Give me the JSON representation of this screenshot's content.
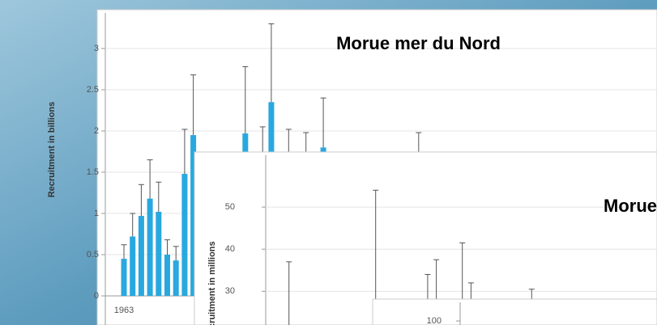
{
  "chart_data": [
    {
      "type": "bar",
      "title": "Morue mer du Nord",
      "y_label": "Recruitment in billions",
      "color": "#29a8df",
      "categories": [
        "1963",
        null,
        null,
        null,
        null,
        null,
        null,
        null,
        null,
        null,
        null,
        null,
        null,
        null,
        null,
        null,
        null,
        null,
        null,
        null,
        null,
        null,
        null,
        null,
        null,
        null,
        null,
        null,
        null,
        null,
        null,
        null,
        null,
        null,
        null
      ],
      "values": [
        0.45,
        0.72,
        0.97,
        1.18,
        1.02,
        0.5,
        0.43,
        1.48,
        1.95,
        null,
        null,
        null,
        null,
        null,
        1.97,
        null,
        null,
        2.35,
        null,
        null,
        null,
        null,
        null,
        1.8,
        null,
        null,
        null,
        null,
        null,
        null,
        null,
        null,
        null,
        null,
        null
      ],
      "upper": [
        0.62,
        1.0,
        1.35,
        1.65,
        1.38,
        0.68,
        0.6,
        2.02,
        2.68,
        null,
        null,
        null,
        null,
        null,
        2.78,
        null,
        2.05,
        3.3,
        null,
        2.02,
        null,
        1.98,
        null,
        2.4,
        null,
        null,
        null,
        null,
        null,
        null,
        null,
        null,
        null,
        null,
        1.98
      ],
      "ylim": [
        0,
        3
      ],
      "yticks": [
        0,
        0.5,
        1,
        1.5,
        2,
        2.5,
        3
      ],
      "grid": true
    },
    {
      "type": "bar",
      "title": "Morue",
      "y_label": "Recruitment in millions",
      "color": "#29a8df",
      "categories": [
        null,
        null,
        null,
        null,
        null,
        null,
        null,
        null,
        null,
        null,
        null,
        null,
        null,
        null,
        null,
        null,
        null,
        null,
        null,
        null,
        null,
        null,
        null,
        null,
        null,
        null,
        null,
        null,
        null,
        null,
        null,
        null
      ],
      "upper": [
        null,
        37,
        null,
        null,
        null,
        null,
        null,
        null,
        null,
        null,
        null,
        54,
        null,
        null,
        null,
        null,
        null,
        34,
        37.5,
        null,
        null,
        41.5,
        32,
        null,
        null,
        null,
        null,
        null,
        null,
        30.5,
        null,
        null
      ],
      "ylim": [
        22,
        60
      ],
      "yticks": [
        30,
        40,
        50
      ],
      "grid": true
    },
    {
      "type": "bar",
      "yticks": [
        100
      ],
      "ylim": [
        95,
        110
      ]
    }
  ]
}
